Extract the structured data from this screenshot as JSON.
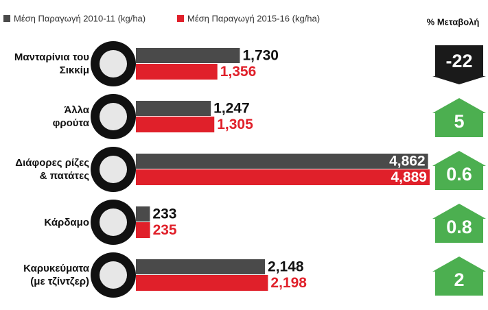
{
  "chart_data": {
    "type": "bar",
    "orientation": "horizontal",
    "categories": [
      "Μανταρίνια του\nΣικκίμ",
      "Άλλα\nφρούτα",
      "Διάφορες ρίζες\n& πατάτες",
      "Κάρδαμο",
      "Καρυκεύματα\n(με τζίντζερ)"
    ],
    "series": [
      {
        "name": "Μέση Παραγωγή 2010-11 (kg/ha)",
        "color": "#4a4a4a",
        "values": [
          1730,
          1247,
          4862,
          233,
          2148
        ],
        "value_labels": [
          "1,730",
          "1,247",
          "4,862",
          "233",
          "2,148"
        ]
      },
      {
        "name": "Μέση Παραγωγή 2015-16 (kg/ha)",
        "color": "#e0202a",
        "values": [
          1356,
          1305,
          4889,
          235,
          2198
        ],
        "value_labels": [
          "1,356",
          "1,305",
          "4,889",
          "235",
          "2,198"
        ]
      }
    ],
    "change": {
      "title": "% Μεταβολή",
      "values": [
        -22,
        5,
        0.6,
        0.8,
        2
      ],
      "up_color": "#4caf50",
      "down_color": "#1a1a1a"
    }
  }
}
